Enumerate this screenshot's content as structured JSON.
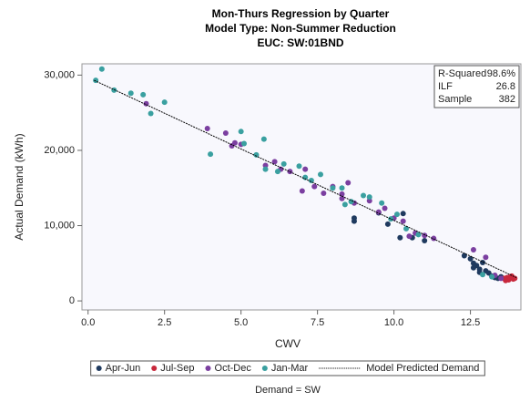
{
  "chart_data": {
    "type": "scatter",
    "title": "Mon-Thurs Regression by Quarter",
    "subtitle": "Model Type: Non-Summer Reduction",
    "subtitle2": "EUC: SW:01BND",
    "x_label": "CWV",
    "y_label": "Actual Demand (kWh)",
    "footnote": "Demand = SW",
    "xlim": [
      -0.2,
      14.15
    ],
    "ylim": [
      -1200,
      31500
    ],
    "xticks": [
      {
        "value": 0,
        "label": "0.0"
      },
      2.5,
      {
        "value": 5,
        "label": "5.0"
      },
      7.5,
      {
        "value": 10,
        "label": "10.0"
      },
      12.5
    ],
    "yticks": [
      0,
      {
        "value": 10000,
        "label": "10,000"
      },
      {
        "value": 20000,
        "label": "20,000"
      },
      {
        "value": 30000,
        "label": "30,000"
      }
    ],
    "stats": [
      {
        "label": "R-Squared",
        "value": "98.6%"
      },
      {
        "label": "ILF",
        "value": "26.8"
      },
      {
        "label": "Sample",
        "value": "382"
      }
    ],
    "series": [
      {
        "name": "Apr-Jun",
        "color": "#1f3a5f",
        "x": [
          8.7,
          8.7,
          9.5,
          10.3,
          10.2,
          10.6,
          12.3,
          12.5,
          12.6,
          12.7,
          12.8,
          12.9,
          13.0,
          13.1,
          13.2,
          13.3,
          13.4,
          12.8,
          13.5,
          12.6,
          11.0,
          9.8
        ],
        "values": [
          10600,
          11000,
          11700,
          11600,
          8400,
          8400,
          6000,
          5600,
          5000,
          4700,
          4200,
          5100,
          4000,
          3700,
          3300,
          3100,
          3000,
          3800,
          3200,
          4400,
          8000,
          10200
        ]
      },
      {
        "name": "Jul-Sep",
        "color": "#c8283c",
        "x": [
          13.6,
          13.7,
          13.8,
          13.9,
          13.75,
          13.85,
          13.65,
          13.95
        ],
        "values": [
          3000,
          3100,
          3200,
          2900,
          2800,
          3300,
          2700,
          3000
        ]
      },
      {
        "name": "Oct-Dec",
        "color": "#7b3fa0",
        "x": [
          1.9,
          3.9,
          4.5,
          4.8,
          5.0,
          4.7,
          5.8,
          6.1,
          6.3,
          6.6,
          7.1,
          7.0,
          7.4,
          7.7,
          8.0,
          8.3,
          8.5,
          8.3,
          8.7,
          9.2,
          9.5,
          9.7,
          10.0,
          10.3,
          10.5,
          10.7,
          11.0,
          11.3,
          12.6,
          13.0,
          13.3,
          13.5
        ],
        "values": [
          26200,
          22900,
          22300,
          21000,
          20800,
          20600,
          18000,
          18500,
          17500,
          17200,
          17500,
          14600,
          15200,
          14300,
          15200,
          14200,
          15700,
          13600,
          13000,
          13300,
          11800,
          12300,
          11000,
          10600,
          8600,
          9000,
          8700,
          8300,
          6800,
          5800,
          3400,
          3000
        ]
      },
      {
        "name": "Jan-Mar",
        "color": "#3aa0a0",
        "x": [
          0.25,
          0.45,
          0.85,
          1.4,
          1.8,
          2.05,
          2.5,
          4.0,
          5.0,
          5.1,
          5.5,
          5.75,
          5.8,
          6.2,
          6.4,
          6.9,
          7.1,
          7.3,
          7.6,
          8.0,
          8.3,
          8.4,
          8.6,
          9.0,
          9.2,
          9.6,
          9.9,
          10.1,
          10.4,
          10.8,
          12.9,
          13.2
        ],
        "values": [
          29300,
          30800,
          28000,
          27600,
          27400,
          24900,
          26400,
          19500,
          22500,
          20900,
          19400,
          21500,
          17500,
          17200,
          18200,
          17900,
          16400,
          16000,
          16800,
          15000,
          15000,
          12800,
          13200,
          14000,
          13800,
          13000,
          10900,
          11500,
          9600,
          8800,
          3500,
          3200
        ]
      },
      {
        "name": "Model Predicted Demand",
        "color": "#000000",
        "style": "dotted",
        "x": [
          0.2,
          14.0
        ],
        "values": [
          29300,
          3100
        ]
      }
    ]
  }
}
